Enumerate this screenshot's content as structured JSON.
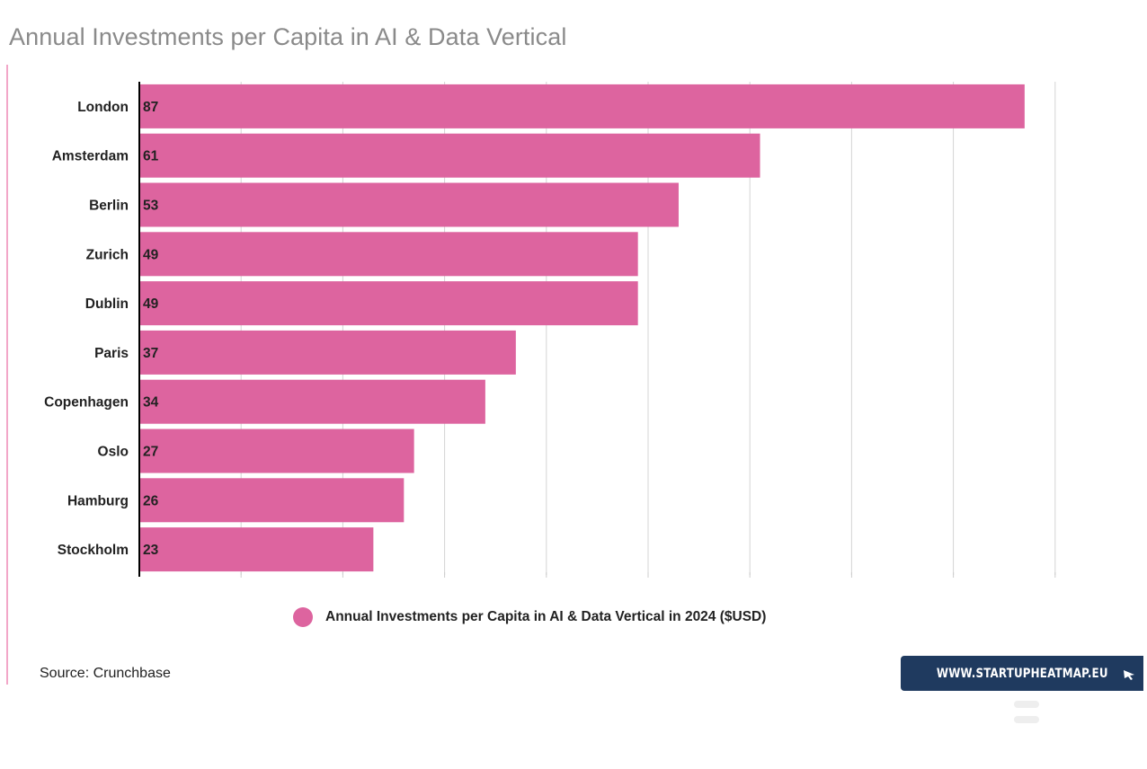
{
  "title": "Annual Investments per Capita in AI & Data Vertical",
  "source": "Source: Crunchbase",
  "badge": {
    "text": "WWW.STARTUPHEATMAP.EU",
    "icon": "cursor-arrow-icon"
  },
  "colors": {
    "bar": "#dd649f",
    "badge": "#1f3a5f",
    "accent": "#f2a7c8"
  },
  "chart_data": {
    "type": "bar",
    "orientation": "horizontal",
    "categories": [
      "London",
      "Amsterdam",
      "Berlin",
      "Zurich",
      "Dublin",
      "Paris",
      "Copenhagen",
      "Oslo",
      "Hamburg",
      "Stockholm"
    ],
    "series": [
      {
        "name": "Annual Investments per Capita in AI & Data Vertical in 2024 ($USD)",
        "values": [
          87,
          61,
          53,
          49,
          49,
          37,
          34,
          27,
          26,
          23
        ]
      }
    ],
    "xlim": [
      0,
      90
    ],
    "grid": true,
    "legend": "bottom",
    "data_labels": true
  }
}
